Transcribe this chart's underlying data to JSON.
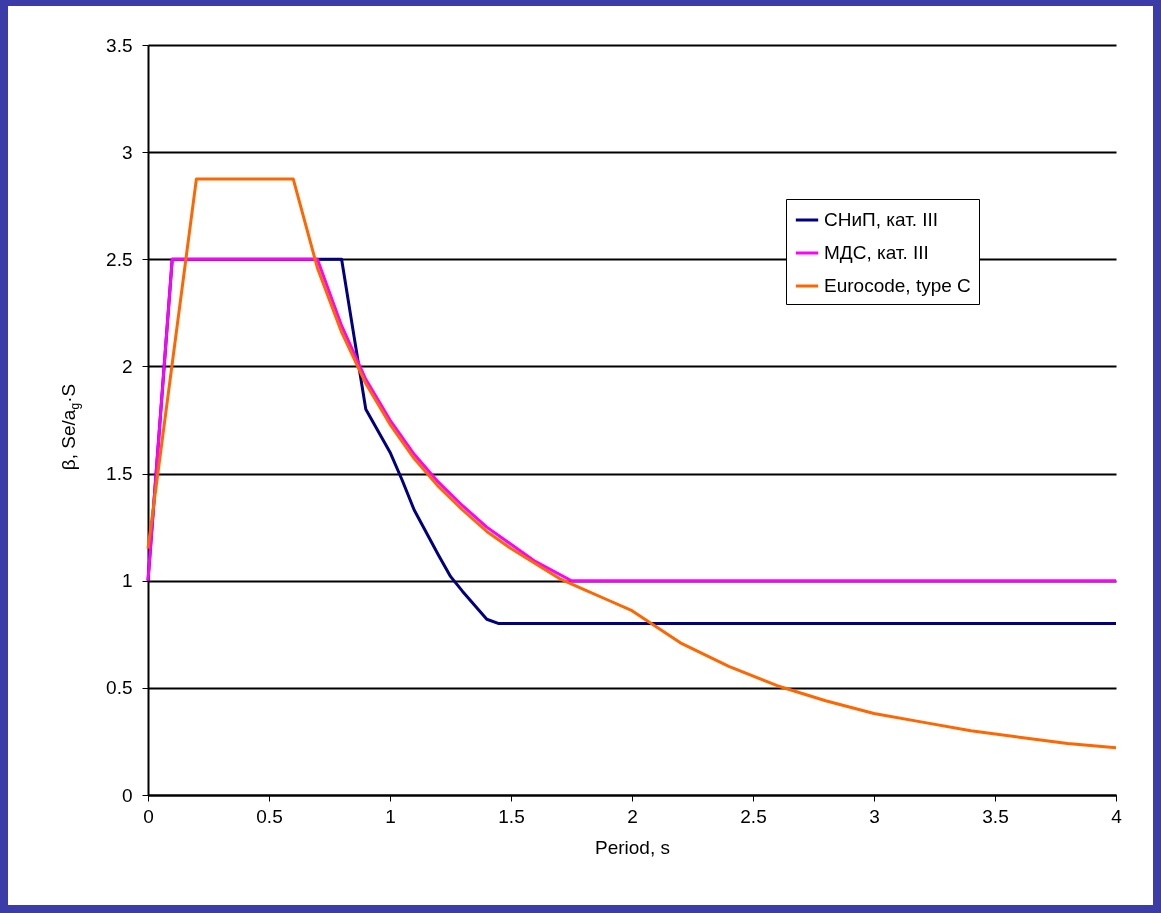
{
  "chart_data": {
    "type": "line",
    "xlabel": "Period, s",
    "ylabel": "β, Se/a$_{g}$·S",
    "xlim": [
      0,
      4
    ],
    "xticks": [
      0,
      0.5,
      1,
      1.5,
      2,
      2.5,
      3,
      3.5,
      4
    ],
    "ylim": [
      0,
      3.5
    ],
    "yticks": [
      0,
      0.5,
      1,
      1.5,
      2,
      2.5,
      3,
      3.5
    ],
    "grid": "y",
    "legend": "top right",
    "line_style": "solid",
    "marker": "none",
    "series": [
      {
        "name": "СНиП, кат. III",
        "color": "#000080",
        "x": [
          0,
          0.1,
          0.8,
          0.9,
          1.0,
          1.05,
          1.1,
          1.2,
          1.25,
          1.3,
          1.4,
          1.45,
          4
        ],
        "values": [
          1,
          2.5,
          2.5,
          1.8,
          1.6,
          1.47,
          1.33,
          1.12,
          1.02,
          0.95,
          0.82,
          0.8,
          0.8
        ]
      },
      {
        "name": "МДС, кат. III",
        "color": "#ff00ff",
        "x": [
          0,
          0.1,
          0.7,
          0.8,
          0.9,
          1.0,
          1.1,
          1.2,
          1.3,
          1.4,
          1.5,
          1.6,
          1.75,
          4
        ],
        "values": [
          1,
          2.5,
          2.5,
          2.19,
          1.94,
          1.75,
          1.59,
          1.46,
          1.35,
          1.25,
          1.17,
          1.09,
          1.0,
          1.0
        ]
      },
      {
        "name": "Eurocode, type C",
        "color": "#ff6600",
        "x": [
          0,
          0.2,
          0.6,
          0.7,
          0.8,
          0.9,
          1.0,
          1.1,
          1.2,
          1.3,
          1.4,
          1.5,
          1.6,
          1.7,
          1.8,
          1.9,
          2.0,
          2.2,
          2.4,
          2.6,
          2.8,
          3.0,
          3.2,
          3.4,
          3.6,
          3.8,
          4.0
        ],
        "values": [
          1.15,
          2.875,
          2.875,
          2.46,
          2.16,
          1.92,
          1.73,
          1.57,
          1.44,
          1.33,
          1.23,
          1.15,
          1.08,
          1.01,
          0.96,
          0.91,
          0.86,
          0.71,
          0.6,
          0.51,
          0.44,
          0.38,
          0.34,
          0.3,
          0.27,
          0.24,
          0.22
        ]
      }
    ]
  }
}
